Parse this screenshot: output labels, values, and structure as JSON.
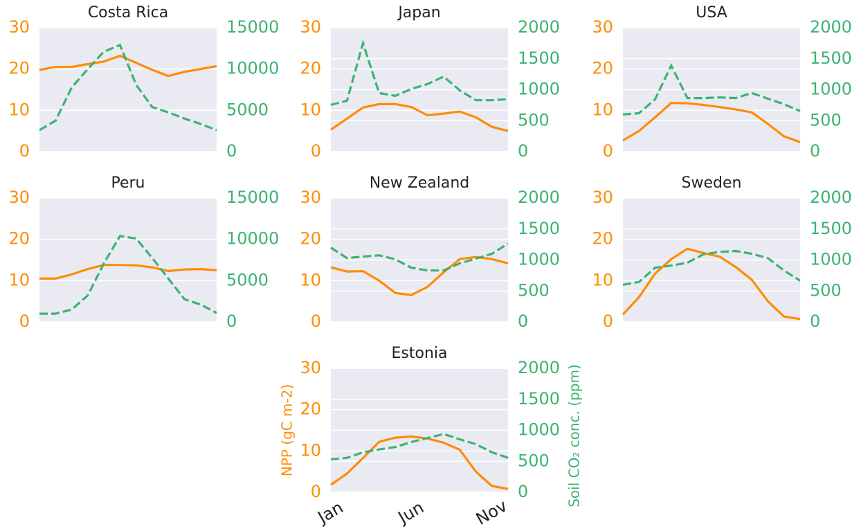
{
  "chart_data": [
    {
      "type": "line",
      "title": "Costa Rica",
      "ylim": [
        0,
        30
      ],
      "yticks": [
        0,
        10,
        20,
        30
      ],
      "y2lim": [
        0,
        15000
      ],
      "y2ticks": [
        0,
        5000,
        10000,
        15000
      ],
      "grid": true,
      "series": [
        {
          "color": "#ff8c00",
          "linestyle": "solid",
          "values": [
            19.8,
            20.5,
            20.5,
            21.2,
            21.8,
            23.2,
            21.5,
            19.8,
            18.3,
            19.3,
            20,
            20.7
          ]
        },
        {
          "color": "#3cb371",
          "linestyle": "dashed",
          "axis": "y2",
          "values": [
            2600,
            3750,
            7750,
            10000,
            12100,
            12900,
            8100,
            5400,
            4750,
            4000,
            3350,
            2600
          ]
        }
      ]
    },
    {
      "type": "line",
      "title": "Japan",
      "ylim": [
        0,
        30
      ],
      "yticks": [
        0,
        10,
        20,
        30
      ],
      "y2lim": [
        0,
        2000
      ],
      "y2ticks": [
        0,
        500,
        1000,
        1500,
        2000
      ],
      "grid": true,
      "series": [
        {
          "color": "#ff8c00",
          "linestyle": "solid",
          "values": [
            5.3,
            8,
            10.7,
            11.5,
            11.5,
            10.8,
            8.8,
            9.2,
            9.7,
            8.3,
            6,
            5
          ]
        },
        {
          "color": "#3cb371",
          "linestyle": "dashed",
          "axis": "y2",
          "values": [
            755,
            820,
            1750,
            945,
            900,
            1010,
            1090,
            1210,
            990,
            830,
            830,
            845
          ]
        }
      ]
    },
    {
      "type": "line",
      "title": "USA",
      "ylim": [
        0,
        30
      ],
      "yticks": [
        0,
        10,
        20,
        30
      ],
      "y2lim": [
        0,
        2000
      ],
      "y2ticks": [
        0,
        500,
        1000,
        1500,
        2000
      ],
      "grid": true,
      "series": [
        {
          "color": "#ff8c00",
          "linestyle": "solid",
          "values": [
            2.7,
            5,
            8.3,
            11.8,
            11.7,
            11.3,
            10.8,
            10.2,
            9.5,
            6.7,
            3.7,
            2.3
          ]
        },
        {
          "color": "#3cb371",
          "linestyle": "dashed",
          "axis": "y2",
          "values": [
            600,
            620,
            845,
            1390,
            865,
            865,
            875,
            865,
            945,
            855,
            765,
            655
          ]
        }
      ]
    },
    {
      "type": "line",
      "title": "Peru",
      "ylim": [
        0,
        30
      ],
      "yticks": [
        0,
        10,
        20,
        30
      ],
      "y2lim": [
        0,
        15000
      ],
      "y2ticks": [
        0,
        5000,
        10000,
        15000
      ],
      "grid": true,
      "series": [
        {
          "color": "#ff8c00",
          "linestyle": "solid",
          "values": [
            10.5,
            10.5,
            11.5,
            12.8,
            13.8,
            13.8,
            13.7,
            13.2,
            12.3,
            12.7,
            12.8,
            12.5
          ]
        },
        {
          "color": "#3cb371",
          "linestyle": "dashed",
          "axis": "y2",
          "values": [
            1000,
            1000,
            1500,
            3200,
            7100,
            10400,
            10100,
            7750,
            5250,
            2750,
            2100,
            1100
          ]
        }
      ]
    },
    {
      "type": "line",
      "title": "New Zealand",
      "ylim": [
        0,
        30
      ],
      "yticks": [
        0,
        10,
        20,
        30
      ],
      "y2lim": [
        0,
        2000
      ],
      "y2ticks": [
        0,
        500,
        1000,
        1500,
        2000
      ],
      "grid": true,
      "series": [
        {
          "color": "#ff8c00",
          "linestyle": "solid",
          "values": [
            13.2,
            12.2,
            12.3,
            10,
            7,
            6.5,
            8.5,
            12,
            15.2,
            15.7,
            15.2,
            14.2
          ]
        },
        {
          "color": "#3cb371",
          "linestyle": "dashed",
          "axis": "y2",
          "values": [
            1200,
            1030,
            1055,
            1075,
            1010,
            875,
            830,
            830,
            945,
            1020,
            1100,
            1265
          ]
        }
      ]
    },
    {
      "type": "line",
      "title": "Sweden",
      "ylim": [
        0,
        30
      ],
      "yticks": [
        0,
        10,
        20,
        30
      ],
      "y2lim": [
        0,
        2000
      ],
      "y2ticks": [
        0,
        500,
        1000,
        1500,
        2000
      ],
      "grid": true,
      "series": [
        {
          "color": "#ff8c00",
          "linestyle": "solid",
          "values": [
            1.8,
            6,
            11.7,
            15.2,
            17.7,
            16.7,
            15.8,
            13.3,
            10.2,
            5,
            1.3,
            0.7
          ]
        },
        {
          "color": "#3cb371",
          "linestyle": "dashed",
          "axis": "y2",
          "values": [
            600,
            645,
            875,
            910,
            955,
            1090,
            1130,
            1145,
            1100,
            1030,
            830,
            665
          ]
        }
      ]
    },
    {
      "type": "line",
      "title": "Estonia",
      "ylabel": "NPP (gC m-2)",
      "y2label": "Soil CO₂ conc. (ppm)",
      "categories": [
        "Jan",
        null,
        null,
        null,
        null,
        "Jun",
        null,
        null,
        null,
        null,
        "Nov",
        null
      ],
      "ylim": [
        0,
        30
      ],
      "yticks": [
        0,
        10,
        20,
        30
      ],
      "y2lim": [
        0,
        2000
      ],
      "y2ticks": [
        0,
        500,
        1000,
        1500,
        2000
      ],
      "grid": true,
      "series": [
        {
          "color": "#ff8c00",
          "linestyle": "solid",
          "values": [
            1.8,
            4.5,
            8.3,
            12.2,
            13.2,
            13.5,
            13,
            12,
            10.3,
            5,
            1.5,
            0.8
          ]
        },
        {
          "color": "#3cb371",
          "linestyle": "dashed",
          "axis": "y2",
          "values": [
            530,
            555,
            645,
            690,
            730,
            810,
            875,
            940,
            855,
            775,
            645,
            555
          ]
        }
      ]
    }
  ]
}
